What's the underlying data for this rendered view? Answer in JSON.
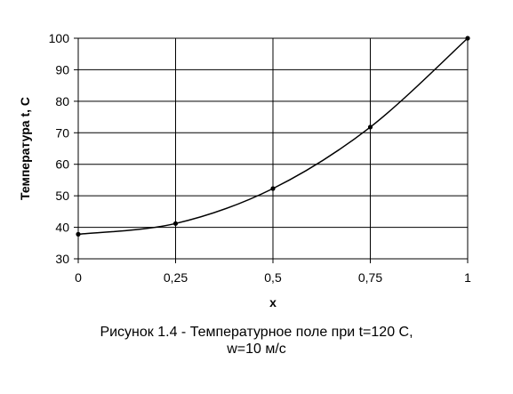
{
  "chart_data": {
    "type": "line",
    "xlabel": "x",
    "ylabel": "Температура t, С",
    "x": [
      0,
      0.25,
      0.5,
      0.75,
      1
    ],
    "x_tick_labels": [
      "0",
      "0,25",
      "0,5",
      "0,75",
      "1"
    ],
    "series": [
      {
        "values": [
          37.8,
          41.2,
          52.3,
          71.8,
          100
        ]
      }
    ],
    "xlim": [
      0,
      1
    ],
    "ylim": [
      30,
      100
    ],
    "y_ticks": [
      30,
      40,
      50,
      60,
      70,
      80,
      90,
      100
    ],
    "grid": true,
    "legend": "none",
    "line_color": "#000000",
    "caption_line1": "Рисунок 1.4 - Температурное поле при t=120 С,",
    "caption_line2": "w=10 м/с"
  }
}
